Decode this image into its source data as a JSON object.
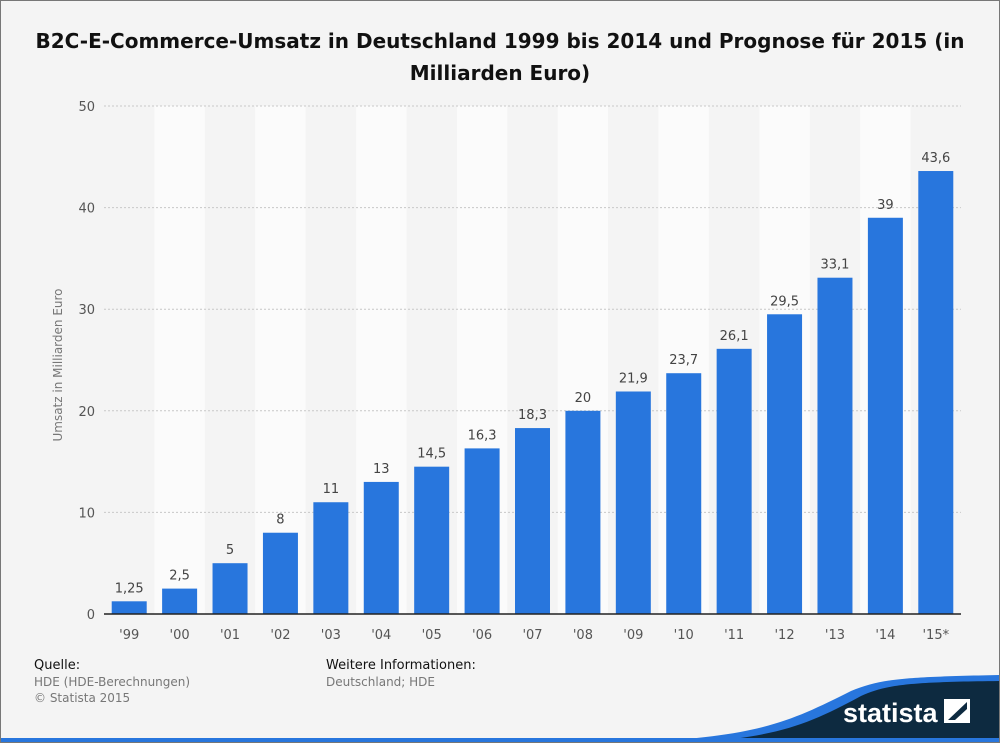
{
  "chart_data": {
    "type": "bar",
    "title": "B2C-E-Commerce-Umsatz in Deutschland 1999 bis 2014 und Prognose für 2015 (in Milliarden Euro)",
    "xlabel": "",
    "ylabel": "Umsatz in Milliarden Euro",
    "ylim": [
      0,
      50
    ],
    "yticks": [
      0,
      10,
      20,
      30,
      40,
      50
    ],
    "grid": true,
    "categories": [
      "'99",
      "'00",
      "'01",
      "'02",
      "'03",
      "'04",
      "'05",
      "'06",
      "'07",
      "'08",
      "'09",
      "'10",
      "'11",
      "'12",
      "'13",
      "'14",
      "'15*"
    ],
    "values": [
      1.25,
      2.5,
      5,
      8,
      11,
      13,
      14.5,
      16.3,
      18.3,
      20,
      21.9,
      23.7,
      26.1,
      29.5,
      33.1,
      39,
      43.6
    ],
    "labels": [
      "1,25",
      "2,5",
      "5",
      "8",
      "11",
      "13",
      "14,5",
      "16,3",
      "18,3",
      "20",
      "21,9",
      "23,7",
      "26,1",
      "29,5",
      "33,1",
      "39",
      "43,6"
    ],
    "bar_color": "#2876dd"
  },
  "footer": {
    "source_heading": "Quelle:",
    "source": "HDE (HDE-Berechnungen)",
    "copyright": "© Statista 2015",
    "info_heading": "Weitere Informationen:",
    "info": "Deutschland; HDE",
    "logo": "statista"
  }
}
